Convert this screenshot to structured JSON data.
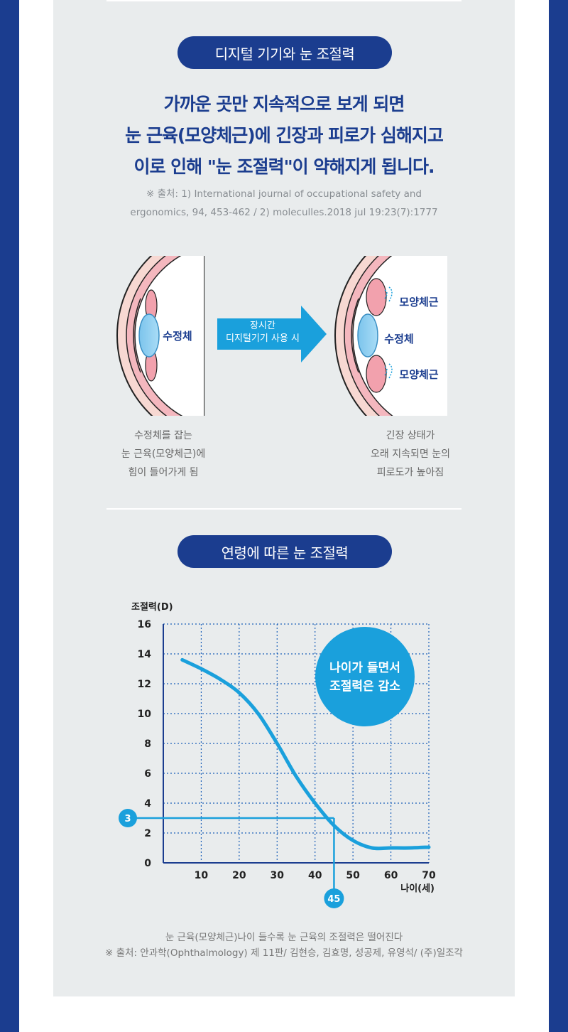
{
  "colors": {
    "navy": "#1b3d8f",
    "accent": "#1aa0dc",
    "panel": "#e9eced",
    "pink": "#f2a1ad",
    "skin": "#f7d8d2"
  },
  "section1": {
    "pill": "디지털 기기와 눈 조절력",
    "headline": [
      "가까운 곳만 지속적으로 보게 되면",
      "눈 근육(모양체근)에 긴장과 피로가 심해지고",
      "이로 인해 \"눈 조절력\"이 약해지게 됩니다."
    ],
    "source": [
      "※ 출처: 1) International journal of occupational safety and",
      "ergonomics, 94, 453-462 / 2) moleculles.2018 jul 19:23(7):1777"
    ]
  },
  "diagram": {
    "left_lens_label": "수정체",
    "arrow_text": [
      "장시간",
      "디지털기기 사용 시"
    ],
    "right_lens_label": "수정체",
    "muscle_top_label": "모양체근",
    "muscle_bottom_label": "모양체근",
    "left_caption": [
      "수정체를 잡는",
      "눈 근육(모양체근)에",
      "힘이 들어가게 됨"
    ],
    "right_caption": [
      "긴장 상태가",
      "오래 지속되면 눈의",
      "피로도가 높아짐"
    ]
  },
  "section2": {
    "pill": "연령에 따른 눈 조절력"
  },
  "chart_data": {
    "type": "line",
    "ylabel": "조절력(D)",
    "xlabel": "나이(세)",
    "ylim": [
      0,
      16
    ],
    "yticks": [
      0,
      2,
      4,
      6,
      8,
      10,
      12,
      14,
      16
    ],
    "xlim": [
      0,
      70
    ],
    "xticks": [
      10,
      20,
      30,
      40,
      50,
      60,
      70
    ],
    "grid": true,
    "series": [
      {
        "x": [
          5,
          10,
          15,
          20,
          25,
          30,
          35,
          40,
          45,
          50,
          55,
          60,
          65,
          70
        ],
        "y": [
          13.6,
          13.0,
          12.3,
          11.4,
          10.0,
          8.0,
          5.8,
          4.0,
          2.5,
          1.5,
          1.0,
          1.0,
          1.0,
          1.05
        ]
      }
    ],
    "marker": {
      "x": 45,
      "y": 3,
      "x_label": "45",
      "y_label": "3"
    },
    "annotation": [
      "나이가 들면서",
      "조절력은 감소"
    ]
  },
  "footnote": [
    "눈 근육(모양체근)나이 들수록 눈 근육의 조절력은 떨어진다",
    "※ 출처: 안과학(Ophthalmology) 제 11판/ 김현승, 김효명, 성공제, 유영석/ (주)일조각"
  ]
}
